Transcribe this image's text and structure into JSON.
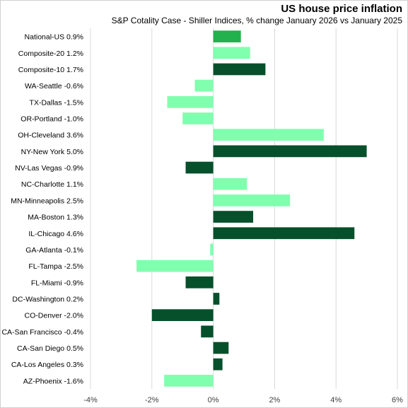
{
  "chart_data": {
    "type": "bar",
    "orientation": "horizontal",
    "title": "US house price inflation",
    "subtitle": "S&P Cotality Case - Shiller Indices, % change January 2026 vs January 2025",
    "xlim": [
      -4,
      6
    ],
    "xticks": [
      -4,
      -2,
      0,
      2,
      4,
      6
    ],
    "xtick_labels": [
      "-4%",
      "-2%",
      "0%",
      "2%",
      "4%",
      "6%"
    ],
    "grid": true,
    "categories": [
      "National-US 0.9%",
      "Composite-20 1.2%",
      "Composite-10 1.7%",
      "WA-Seattle -0.6%",
      "TX-Dallas -1.5%",
      "OR-Portland -1.0%",
      "OH-Cleveland 3.6%",
      "NY-New York 5.0%",
      "NV-Las Vegas -0.9%",
      "NC-Charlotte 1.1%",
      "MN-Minneapolis 2.5%",
      "MA-Boston 1.3%",
      "IL-Chicago 4.6%",
      "GA-Atlanta -0.1%",
      "FL-Tampa -2.5%",
      "FL-Miami -0.9%",
      "DC-Washington 0.2%",
      "CO-Denver -2.0%",
      "CA-San Francisco -0.4%",
      "CA-San Diego 0.5%",
      "CA-Los Angeles 0.3%",
      "AZ-Phoenix -1.6%"
    ],
    "values": [
      0.9,
      1.2,
      1.7,
      -0.6,
      -1.5,
      -1.0,
      3.6,
      5.0,
      -0.9,
      1.1,
      2.5,
      1.3,
      4.6,
      -0.1,
      -2.5,
      -0.9,
      0.2,
      -2.0,
      -0.4,
      0.5,
      0.3,
      -1.6
    ],
    "colors": [
      "#22b14c",
      "#80ffae",
      "#06502b",
      "#80ffae",
      "#80ffae",
      "#80ffae",
      "#80ffae",
      "#06502b",
      "#06502b",
      "#80ffae",
      "#80ffae",
      "#06502b",
      "#06502b",
      "#80ffae",
      "#80ffae",
      "#06502b",
      "#06502b",
      "#06502b",
      "#06502b",
      "#06502b",
      "#06502b",
      "#80ffae"
    ]
  }
}
